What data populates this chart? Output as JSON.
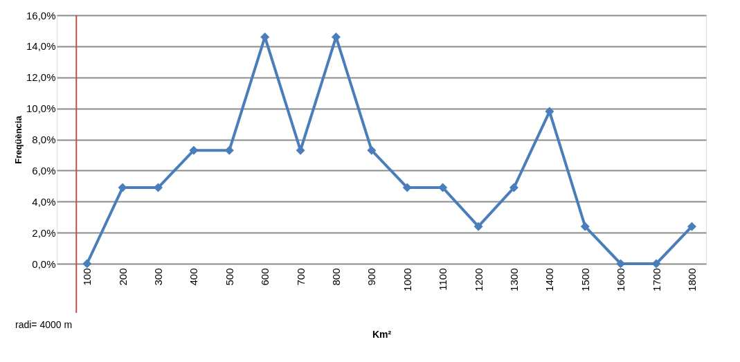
{
  "chart_data": {
    "type": "line",
    "xlabel": "Km²",
    "ylabel": "Freqüència",
    "x": [
      100,
      200,
      300,
      400,
      500,
      600,
      700,
      800,
      900,
      1000,
      1100,
      1200,
      1300,
      1400,
      1500,
      1600,
      1700,
      1800
    ],
    "series": [
      {
        "color": "#4a7ebb",
        "values": [
          0,
          4.9,
          4.9,
          7.3,
          7.3,
          14.6,
          7.3,
          14.6,
          7.3,
          4.9,
          4.9,
          2.4,
          4.9,
          9.8,
          2.4,
          0,
          0,
          2.4
        ]
      }
    ],
    "xlim": [
      15,
      1840
    ],
    "xticks": [
      100,
      200,
      300,
      400,
      500,
      600,
      700,
      800,
      900,
      1000,
      1100,
      1200,
      1300,
      1400,
      1500,
      1600,
      1700,
      1800
    ],
    "ylim": [
      0,
      16
    ],
    "yticks": [
      {
        "value": 0,
        "label": "0,0%"
      },
      {
        "value": 2,
        "label": "2,0%"
      },
      {
        "value": 4,
        "label": "4,0%"
      },
      {
        "value": 6,
        "label": "6,0%"
      },
      {
        "value": 8,
        "label": "8,0%"
      },
      {
        "value": 10,
        "label": "10,0%"
      },
      {
        "value": 12,
        "label": "12,0%"
      },
      {
        "value": 14,
        "label": "14,0%"
      },
      {
        "value": 16,
        "label": "16,0%"
      }
    ],
    "ref_lines": [
      {
        "axis": "x",
        "value": 70,
        "color": "#c0504d"
      }
    ],
    "annotations": [
      "radi= 4000 m"
    ],
    "grid": "y",
    "marker": "diamond",
    "line_style": "solid"
  }
}
